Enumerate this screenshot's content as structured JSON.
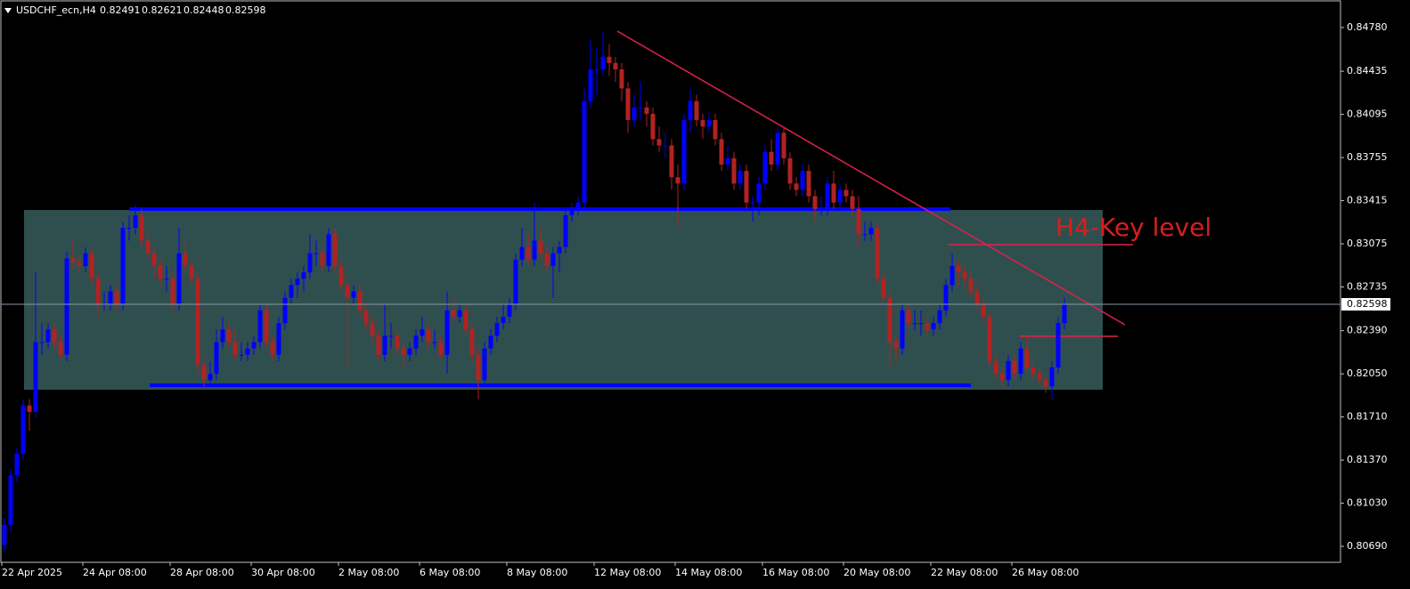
{
  "chart_data": {
    "type": "candlestick",
    "title": "USDCHF_ecn,H4",
    "header_ohlc": [
      0.82491,
      0.82621,
      0.82448,
      0.82598
    ],
    "current_price": 0.82598,
    "annotation": "H4-Key level",
    "up_color": "#0000ff",
    "down_color": "#b22222",
    "ylim": [
      0.80564,
      0.84983
    ],
    "yticks": [
      {
        "value": 0.8478,
        "label": "0.84780"
      },
      0.84435,
      0.84095,
      0.83755,
      0.83415,
      0.83075,
      0.82735,
      {
        "value": 0.8239,
        "label": "0.82390"
      },
      {
        "value": 0.8205,
        "label": "0.82050"
      },
      {
        "value": 0.8171,
        "label": "0.81710"
      },
      {
        "value": 0.8137,
        "label": "0.81370"
      },
      {
        "value": 0.8103,
        "label": "0.81030"
      },
      {
        "value": 0.8069,
        "label": "0.80690"
      }
    ],
    "xticks": [
      {
        "value": 0,
        "label": "22 Apr 2025"
      },
      {
        "value": 13,
        "label": "24 Apr 08:00"
      },
      {
        "value": 27,
        "label": "28 Apr 08:00"
      },
      {
        "value": 40,
        "label": "30 Apr 08:00"
      },
      {
        "value": 54,
        "label": "2 May 08:00"
      },
      {
        "value": 67,
        "label": "6 May 08:00"
      },
      {
        "value": 81,
        "label": "8 May 08:00"
      },
      {
        "value": 95,
        "label": "12 May 08:00"
      },
      {
        "value": 108,
        "label": "14 May 08:00"
      },
      {
        "value": 122,
        "label": "16 May 08:00"
      },
      {
        "value": 135,
        "label": "20 May 08:00"
      },
      {
        "value": 149,
        "label": "22 May 08:00"
      },
      {
        "value": 162,
        "label": "26 May 08:00"
      }
    ],
    "candles": [
      [
        0.807,
        0.8091,
        0.8065,
        0.8086
      ],
      [
        0.8086,
        0.813,
        0.8081,
        0.8125
      ],
      [
        0.8125,
        0.8147,
        0.812,
        0.8142
      ],
      [
        0.8142,
        0.8185,
        0.8137,
        0.818
      ],
      [
        0.818,
        0.8185,
        0.816,
        0.8175
      ],
      [
        0.8175,
        0.8285,
        0.817,
        0.823
      ],
      [
        0.823,
        0.8245,
        0.822,
        0.823
      ],
      [
        0.823,
        0.8245,
        0.8225,
        0.824
      ],
      [
        0.824,
        0.8245,
        0.8225,
        0.823
      ],
      [
        0.823,
        0.8235,
        0.8215,
        0.822
      ],
      [
        0.822,
        0.8301,
        0.8215,
        0.8296
      ],
      [
        0.8296,
        0.831,
        0.8288,
        0.8293
      ],
      [
        0.8293,
        0.8298,
        0.8285,
        0.829
      ],
      [
        0.829,
        0.8305,
        0.8285,
        0.83
      ],
      [
        0.83,
        0.8305,
        0.8275,
        0.828
      ],
      [
        0.828,
        0.8285,
        0.825,
        0.826
      ],
      [
        0.826,
        0.827,
        0.8255,
        0.826
      ],
      [
        0.826,
        0.8275,
        0.8255,
        0.827
      ],
      [
        0.827,
        0.8275,
        0.8255,
        0.826
      ],
      [
        0.826,
        0.8325,
        0.8255,
        0.832
      ],
      [
        0.832,
        0.833,
        0.831,
        0.832
      ],
      [
        0.832,
        0.8338,
        0.8315,
        0.833
      ],
      [
        0.833,
        0.8335,
        0.8305,
        0.831
      ],
      [
        0.831,
        0.8315,
        0.8295,
        0.83
      ],
      [
        0.83,
        0.8305,
        0.828,
        0.829
      ],
      [
        0.829,
        0.8295,
        0.8275,
        0.828
      ],
      [
        0.828,
        0.829,
        0.827,
        0.828
      ],
      [
        0.828,
        0.8285,
        0.8255,
        0.826
      ],
      [
        0.826,
        0.832,
        0.8255,
        0.83
      ],
      [
        0.83,
        0.831,
        0.8285,
        0.829
      ],
      [
        0.829,
        0.8295,
        0.8275,
        0.828
      ],
      [
        0.828,
        0.8285,
        0.8205,
        0.8212
      ],
      [
        0.8212,
        0.8217,
        0.8195,
        0.82
      ],
      [
        0.82,
        0.8215,
        0.8195,
        0.8205
      ],
      [
        0.8205,
        0.824,
        0.82,
        0.823
      ],
      [
        0.823,
        0.825,
        0.8225,
        0.824
      ],
      [
        0.824,
        0.8245,
        0.8225,
        0.823
      ],
      [
        0.823,
        0.824,
        0.8215,
        0.822
      ],
      [
        0.822,
        0.823,
        0.8215,
        0.822
      ],
      [
        0.822,
        0.823,
        0.8215,
        0.8225
      ],
      [
        0.8225,
        0.8235,
        0.822,
        0.823
      ],
      [
        0.823,
        0.826,
        0.8225,
        0.8255
      ],
      [
        0.8255,
        0.826,
        0.8225,
        0.823
      ],
      [
        0.823,
        0.8235,
        0.8215,
        0.822
      ],
      [
        0.822,
        0.825,
        0.8215,
        0.8245
      ],
      [
        0.8245,
        0.827,
        0.824,
        0.8265
      ],
      [
        0.8265,
        0.828,
        0.826,
        0.8275
      ],
      [
        0.8275,
        0.8285,
        0.8265,
        0.828
      ],
      [
        0.828,
        0.829,
        0.827,
        0.8285
      ],
      [
        0.8285,
        0.8315,
        0.828,
        0.83
      ],
      [
        0.83,
        0.831,
        0.829,
        0.83
      ],
      [
        0.83,
        0.8305,
        0.8285,
        0.829
      ],
      [
        0.829,
        0.832,
        0.8285,
        0.8315
      ],
      [
        0.8315,
        0.832,
        0.8285,
        0.829
      ],
      [
        0.829,
        0.8295,
        0.827,
        0.8275
      ],
      [
        0.8275,
        0.828,
        0.821,
        0.8265
      ],
      [
        0.8265,
        0.8275,
        0.826,
        0.827
      ],
      [
        0.827,
        0.8275,
        0.825,
        0.8255
      ],
      [
        0.8255,
        0.826,
        0.824,
        0.8245
      ],
      [
        0.8245,
        0.825,
        0.823,
        0.8235
      ],
      [
        0.8235,
        0.824,
        0.8215,
        0.822
      ],
      [
        0.822,
        0.826,
        0.8215,
        0.8235
      ],
      [
        0.8235,
        0.8245,
        0.8225,
        0.8235
      ],
      [
        0.8235,
        0.824,
        0.822,
        0.8225
      ],
      [
        0.8225,
        0.823,
        0.821,
        0.822
      ],
      [
        0.822,
        0.823,
        0.8215,
        0.8225
      ],
      [
        0.8225,
        0.824,
        0.822,
        0.8235
      ],
      [
        0.8235,
        0.825,
        0.823,
        0.824
      ],
      [
        0.824,
        0.8245,
        0.8225,
        0.823
      ],
      [
        0.823,
        0.824,
        0.8225,
        0.823
      ],
      [
        0.823,
        0.8235,
        0.8215,
        0.822
      ],
      [
        0.822,
        0.827,
        0.8205,
        0.8255
      ],
      [
        0.8255,
        0.8265,
        0.8245,
        0.825
      ],
      [
        0.825,
        0.826,
        0.8245,
        0.8255
      ],
      [
        0.8255,
        0.826,
        0.8235,
        0.824
      ],
      [
        0.824,
        0.8245,
        0.8215,
        0.822
      ],
      [
        0.822,
        0.8225,
        0.8185,
        0.82
      ],
      [
        0.82,
        0.823,
        0.8195,
        0.8225
      ],
      [
        0.8225,
        0.824,
        0.822,
        0.8235
      ],
      [
        0.8235,
        0.825,
        0.823,
        0.8245
      ],
      [
        0.8245,
        0.826,
        0.824,
        0.825
      ],
      [
        0.825,
        0.8265,
        0.8245,
        0.826
      ],
      [
        0.826,
        0.83,
        0.8255,
        0.8295
      ],
      [
        0.8295,
        0.832,
        0.829,
        0.8305
      ],
      [
        0.8305,
        0.8315,
        0.829,
        0.8295
      ],
      [
        0.8295,
        0.834,
        0.829,
        0.831
      ],
      [
        0.831,
        0.832,
        0.8295,
        0.83
      ],
      [
        0.83,
        0.8305,
        0.8285,
        0.829
      ],
      [
        0.829,
        0.8305,
        0.8265,
        0.83
      ],
      [
        0.83,
        0.831,
        0.8285,
        0.8305
      ],
      [
        0.8305,
        0.8335,
        0.83,
        0.833
      ],
      [
        0.833,
        0.834,
        0.8325,
        0.8335
      ],
      [
        0.8335,
        0.8345,
        0.833,
        0.834
      ],
      [
        0.834,
        0.843,
        0.8335,
        0.842
      ],
      [
        0.842,
        0.8468,
        0.8415,
        0.8445
      ],
      [
        0.8445,
        0.8462,
        0.8425,
        0.8445
      ],
      [
        0.8445,
        0.8475,
        0.844,
        0.8455
      ],
      [
        0.8455,
        0.8465,
        0.844,
        0.845
      ],
      [
        0.845,
        0.8455,
        0.8435,
        0.8445
      ],
      [
        0.8445,
        0.845,
        0.842,
        0.843
      ],
      [
        0.843,
        0.8435,
        0.8395,
        0.8405
      ],
      [
        0.8405,
        0.8425,
        0.84,
        0.8415
      ],
      [
        0.8415,
        0.8435,
        0.8405,
        0.8415
      ],
      [
        0.8415,
        0.842,
        0.84,
        0.841
      ],
      [
        0.841,
        0.8415,
        0.8385,
        0.839
      ],
      [
        0.839,
        0.84,
        0.838,
        0.8385
      ],
      [
        0.8385,
        0.8395,
        0.8375,
        0.8385
      ],
      [
        0.8385,
        0.839,
        0.835,
        0.836
      ],
      [
        0.836,
        0.837,
        0.832,
        0.8355
      ],
      [
        0.8355,
        0.841,
        0.835,
        0.8405
      ],
      [
        0.8405,
        0.843,
        0.8395,
        0.842
      ],
      [
        0.842,
        0.8425,
        0.84,
        0.8405
      ],
      [
        0.8405,
        0.841,
        0.839,
        0.84
      ],
      [
        0.84,
        0.841,
        0.8395,
        0.8405
      ],
      [
        0.8405,
        0.841,
        0.8385,
        0.839
      ],
      [
        0.839,
        0.8395,
        0.8365,
        0.837
      ],
      [
        0.837,
        0.8385,
        0.8365,
        0.8375
      ],
      [
        0.8375,
        0.838,
        0.835,
        0.8355
      ],
      [
        0.8355,
        0.837,
        0.835,
        0.8365
      ],
      [
        0.8365,
        0.837,
        0.8335,
        0.834
      ],
      [
        0.834,
        0.8345,
        0.8325,
        0.834
      ],
      [
        0.834,
        0.836,
        0.833,
        0.8355
      ],
      [
        0.8355,
        0.8385,
        0.835,
        0.838
      ],
      [
        0.838,
        0.839,
        0.8365,
        0.837
      ],
      [
        0.837,
        0.84,
        0.8365,
        0.8395
      ],
      [
        0.8395,
        0.84,
        0.837,
        0.8375
      ],
      [
        0.8375,
        0.838,
        0.835,
        0.8355
      ],
      [
        0.8355,
        0.836,
        0.8345,
        0.835
      ],
      [
        0.835,
        0.837,
        0.8345,
        0.8365
      ],
      [
        0.8365,
        0.837,
        0.834,
        0.8345
      ],
      [
        0.8345,
        0.835,
        0.8325,
        0.8335
      ],
      [
        0.8335,
        0.8345,
        0.833,
        0.8335
      ],
      [
        0.8335,
        0.836,
        0.833,
        0.8355
      ],
      [
        0.8355,
        0.8365,
        0.8335,
        0.834
      ],
      [
        0.834,
        0.8355,
        0.8335,
        0.835
      ],
      [
        0.835,
        0.8355,
        0.834,
        0.8345
      ],
      [
        0.8345,
        0.835,
        0.833,
        0.8335
      ],
      [
        0.8335,
        0.8345,
        0.8305,
        0.8315
      ],
      [
        0.8315,
        0.8325,
        0.831,
        0.8315
      ],
      [
        0.8315,
        0.8325,
        0.831,
        0.832
      ],
      [
        0.832,
        0.8325,
        0.8275,
        0.828
      ],
      [
        0.828,
        0.8285,
        0.826,
        0.8265
      ],
      [
        0.8265,
        0.827,
        0.821,
        0.823
      ],
      [
        0.823,
        0.8235,
        0.8215,
        0.8225
      ],
      [
        0.8225,
        0.826,
        0.822,
        0.8255
      ],
      [
        0.8255,
        0.826,
        0.824,
        0.8245
      ],
      [
        0.8245,
        0.8255,
        0.824,
        0.8245
      ],
      [
        0.8245,
        0.8255,
        0.8235,
        0.8245
      ],
      [
        0.8245,
        0.825,
        0.8235,
        0.824
      ],
      [
        0.824,
        0.825,
        0.8235,
        0.8245
      ],
      [
        0.8245,
        0.826,
        0.824,
        0.8255
      ],
      [
        0.8255,
        0.828,
        0.825,
        0.8275
      ],
      [
        0.8275,
        0.83,
        0.827,
        0.829
      ],
      [
        0.829,
        0.8295,
        0.8275,
        0.8285
      ],
      [
        0.8285,
        0.829,
        0.8275,
        0.828
      ],
      [
        0.828,
        0.8285,
        0.8265,
        0.827
      ],
      [
        0.827,
        0.8275,
        0.8255,
        0.826
      ],
      [
        0.826,
        0.8265,
        0.8245,
        0.825
      ],
      [
        0.825,
        0.8255,
        0.821,
        0.8215
      ],
      [
        0.8215,
        0.822,
        0.82,
        0.8205
      ],
      [
        0.8205,
        0.821,
        0.8195,
        0.82
      ],
      [
        0.82,
        0.822,
        0.8195,
        0.8215
      ],
      [
        0.8215,
        0.822,
        0.82,
        0.8205
      ],
      [
        0.8205,
        0.823,
        0.82,
        0.8225
      ],
      [
        0.8225,
        0.8235,
        0.8205,
        0.821
      ],
      [
        0.821,
        0.8215,
        0.82,
        0.8205
      ],
      [
        0.8205,
        0.821,
        0.8195,
        0.82
      ],
      [
        0.82,
        0.8205,
        0.819,
        0.8195
      ],
      [
        0.8195,
        0.8215,
        0.8185,
        0.821
      ],
      [
        0.821,
        0.825,
        0.8205,
        0.8245
      ],
      [
        0.8245,
        0.8265,
        0.824,
        0.826
      ]
    ]
  }
}
